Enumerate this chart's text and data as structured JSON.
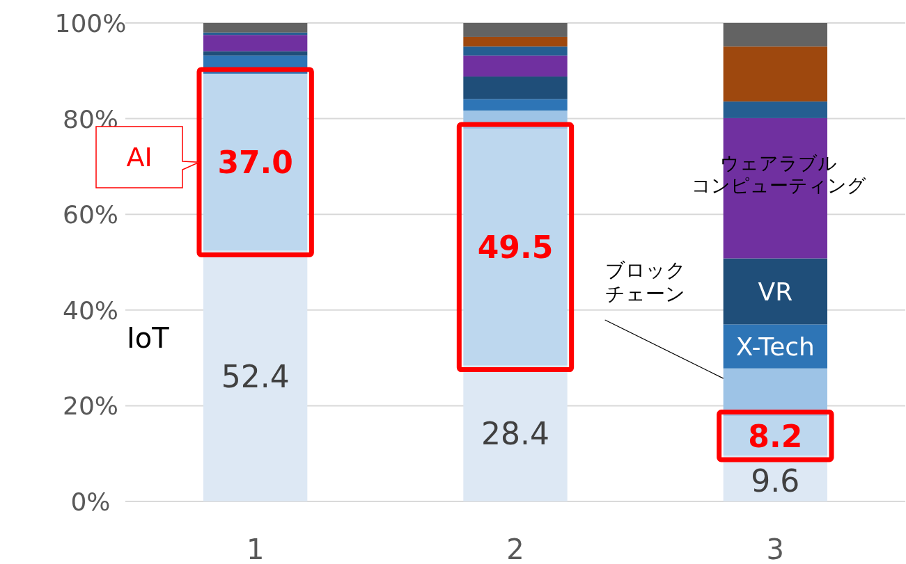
{
  "chart_data": {
    "type": "bar",
    "stacked": true,
    "categories": [
      "1",
      "2",
      "3"
    ],
    "series": [
      {
        "name": "IoT",
        "color": "#dde8f4",
        "values": [
          52.4,
          28.4,
          9.6
        ],
        "value_labels": [
          "52.4",
          "28.4",
          "9.6"
        ]
      },
      {
        "name": "AI",
        "color": "#bdd7ee",
        "values": [
          37.0,
          49.5,
          8.2
        ],
        "value_labels": [
          "37.0",
          "49.5",
          "8.2"
        ]
      },
      {
        "name": "ブロックチェーン",
        "color": "#9dc3e6",
        "values": [
          0,
          3.8,
          10.0
        ]
      },
      {
        "name": "X-Tech",
        "color": "#2e75b6",
        "values": [
          3.8,
          2.4,
          9.2
        ]
      },
      {
        "name": "VR",
        "color": "#1f4e79",
        "values": [
          0.9,
          4.7,
          13.8
        ]
      },
      {
        "name": "ウェアラブルコンピューティング",
        "color": "#7030a0",
        "values": [
          3.4,
          4.4,
          29.3
        ]
      },
      {
        "color": "#255e91",
        "values": [
          0.5,
          1.9,
          3.5
        ]
      },
      {
        "color": "#9e480e",
        "values": [
          0,
          2.0,
          11.5
        ]
      },
      {
        "color": "#636363",
        "values": [
          2.0,
          2.9,
          4.9
        ]
      }
    ],
    "ylim": [
      0,
      100
    ],
    "yticks": [
      {
        "value": 0,
        "label": "0%"
      },
      {
        "value": 20,
        "label": "20%"
      },
      {
        "value": 40,
        "label": "40%"
      },
      {
        "value": 60,
        "label": "60%"
      },
      {
        "value": 80,
        "label": "80%"
      },
      {
        "value": 100,
        "label": "100%"
      }
    ],
    "grid": "y"
  }
}
